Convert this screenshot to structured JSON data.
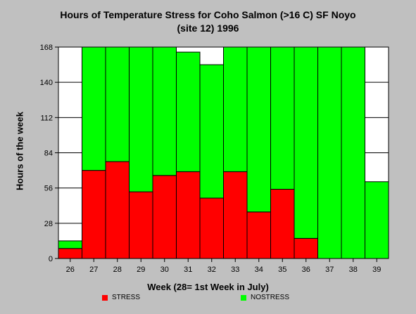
{
  "chart_data": {
    "type": "bar",
    "stacked": true,
    "title_line1": "Hours of Temperature Stress for Coho Salmon (>16 C)  SF Noyo",
    "title_line2": "(site 12) 1996",
    "xlabel": "Week (28= 1st Week in July)",
    "ylabel": "Hours of the week",
    "categories": [
      "26",
      "27",
      "28",
      "29",
      "30",
      "31",
      "32",
      "33",
      "34",
      "35",
      "36",
      "37",
      "38",
      "39"
    ],
    "ylim": [
      0,
      168
    ],
    "yticks": [
      0,
      28,
      56,
      84,
      112,
      140,
      168
    ],
    "grid": true,
    "legend_position": "bottom",
    "series": [
      {
        "name": "STRESS",
        "color": "#ff0000",
        "values": [
          8,
          70,
          77,
          53,
          66,
          69,
          48,
          69,
          37,
          55,
          16,
          0,
          0,
          0
        ]
      },
      {
        "name": "NOSTRESS",
        "color": "#00ff00",
        "values": [
          6,
          98,
          91,
          115,
          102,
          95,
          106,
          99,
          131,
          113,
          152,
          168,
          168,
          61
        ]
      }
    ]
  }
}
